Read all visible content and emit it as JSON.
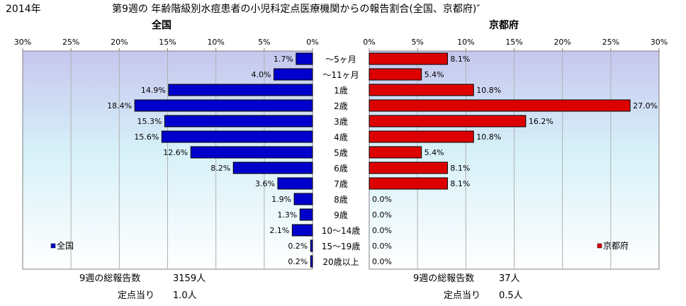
{
  "header": {
    "year": "2014年",
    "title": "第9週の  年齢階級別水痘患者の小児科定点医療機関からの報告割合(全国、京都府)″"
  },
  "chart_data": {
    "type": "bar",
    "orientation": "horizontal",
    "categories": [
      "～5ヶ月",
      "～11ヶ月",
      "1歳",
      "2歳",
      "3歳",
      "4歳",
      "5歳",
      "6歳",
      "7歳",
      "8歳",
      "9歳",
      "10～14歳",
      "15～19歳",
      "20歳以上"
    ],
    "ticks": [
      "30%",
      "25%",
      "20%",
      "15%",
      "10%",
      "5%",
      "0%"
    ],
    "ticks_right": [
      "0%",
      "5%",
      "10%",
      "15%",
      "20%",
      "25%",
      "30%"
    ],
    "xlim": [
      0,
      30
    ],
    "grid": true,
    "panels": [
      {
        "title": "全国",
        "legend": "全国",
        "color": "#0000cc",
        "values": [
          1.7,
          4.0,
          14.9,
          18.4,
          15.3,
          15.6,
          12.6,
          8.2,
          3.6,
          1.9,
          1.3,
          2.1,
          0.2,
          0.2
        ],
        "labels": [
          "1.7%",
          "4.0%",
          "14.9%",
          "18.4%",
          "15.3%",
          "15.6%",
          "12.6%",
          "8.2%",
          "3.6%",
          "1.9%",
          "1.3%",
          "2.1%",
          "0.2%",
          "0.2%"
        ]
      },
      {
        "title": "京都府",
        "legend": "京都府",
        "color": "#dd0000",
        "values": [
          8.1,
          5.4,
          10.8,
          27.0,
          16.2,
          10.8,
          5.4,
          8.1,
          8.1,
          0.0,
          0.0,
          0.0,
          0.0,
          0.0
        ],
        "labels": [
          "8.1%",
          "5.4%",
          "10.8%",
          "27.0%",
          "16.2%",
          "10.8%",
          "5.4%",
          "8.1%",
          "8.1%",
          "0.0%",
          "0.0%",
          "0.0%",
          "0.0%",
          "0.0%"
        ]
      }
    ]
  },
  "summary": {
    "national": {
      "total_label": "9週の総報告数",
      "total_value": "3159人",
      "per_label": "定点当り",
      "per_value": "1.0人"
    },
    "kyoto": {
      "total_label": "9週の総報告数",
      "total_value": "37人",
      "per_label": "定点当り",
      "per_value": "0.5人"
    }
  }
}
